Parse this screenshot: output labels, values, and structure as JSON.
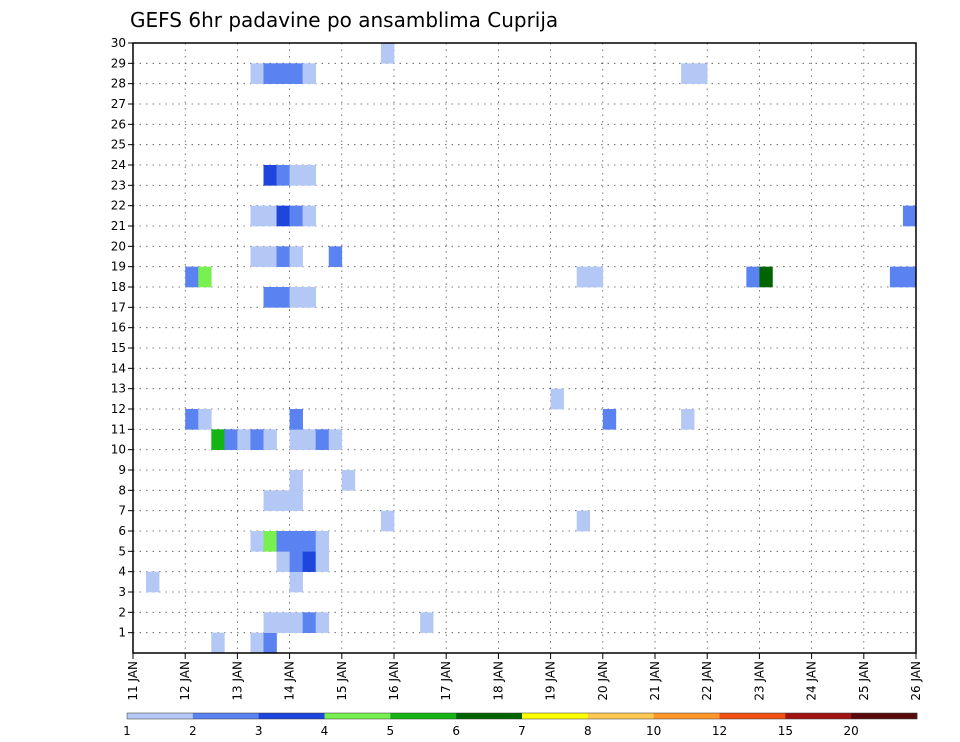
{
  "chart_data": {
    "type": "heatmap",
    "title": "GEFS 6hr padavine po ansamblima Cuprija",
    "xlabel": "",
    "ylabel": "",
    "x_axis": {
      "type": "date",
      "min": "2024-01-11T00:00",
      "max": "2024-01-26T00:00",
      "step_hours": 6,
      "tick_labels": [
        "11 JAN",
        "12 JAN",
        "13 JAN",
        "14 JAN",
        "15 JAN",
        "16 JAN",
        "17 JAN",
        "18 JAN",
        "19 JAN",
        "20 JAN",
        "21 JAN",
        "22 JAN",
        "23 JAN",
        "24 JAN",
        "25 JAN",
        "26 JAN"
      ]
    },
    "y_axis": {
      "min": 0,
      "max": 30,
      "tick_labels": [
        "1",
        "2",
        "3",
        "4",
        "5",
        "6",
        "7",
        "8",
        "9",
        "10",
        "11",
        "12",
        "13",
        "14",
        "15",
        "16",
        "17",
        "18",
        "19",
        "20",
        "21",
        "22",
        "23",
        "24",
        "25",
        "26",
        "27",
        "28",
        "29",
        "30"
      ]
    },
    "grid": true,
    "legend": {
      "placement": "bottom",
      "labels": [
        "1",
        "2",
        "3",
        "4",
        "5",
        "6",
        "7",
        "8",
        "10",
        "12",
        "15",
        "20"
      ],
      "colors": [
        "#b4c8f5",
        "#5a82f0",
        "#1e46dc",
        "#78f050",
        "#14b414",
        "#006400",
        "#ffff00",
        "#ffc850",
        "#ff9628",
        "#f05014",
        "#a01414",
        "#5a0a0a"
      ]
    },
    "colors": {
      "A": "#b4c8f5",
      "B": "#5a82f0",
      "C": "#1e46dc",
      "D": "#78f050",
      "E": "#14b414",
      "F": "#006400"
    },
    "cells": [
      {
        "x": "2024-01-11T06:00",
        "y": 3,
        "v": "A"
      },
      {
        "x": "2024-01-12T00:00",
        "y": 11,
        "v": "B"
      },
      {
        "x": "2024-01-12T06:00",
        "y": 11,
        "v": "A"
      },
      {
        "x": "2024-01-12T00:00",
        "y": 18,
        "v": "B"
      },
      {
        "x": "2024-01-12T06:00",
        "y": 18,
        "v": "D"
      },
      {
        "x": "2024-01-12T12:00",
        "y": 10,
        "v": "E"
      },
      {
        "x": "2024-01-12T18:00",
        "y": 10,
        "v": "B"
      },
      {
        "x": "2024-01-13T00:00",
        "y": 10,
        "v": "A"
      },
      {
        "x": "2024-01-13T06:00",
        "y": 10,
        "v": "B"
      },
      {
        "x": "2024-01-13T12:00",
        "y": 10,
        "v": "A"
      },
      {
        "x": "2024-01-14T00:00",
        "y": 10,
        "v": "A"
      },
      {
        "x": "2024-01-14T06:00",
        "y": 10,
        "v": "A"
      },
      {
        "x": "2024-01-14T12:00",
        "y": 10,
        "v": "B"
      },
      {
        "x": "2024-01-14T18:00",
        "y": 10,
        "v": "A"
      },
      {
        "x": "2024-01-14T00:00",
        "y": 11,
        "v": "B"
      },
      {
        "x": "2024-01-12T12:00",
        "y": 0,
        "v": "A"
      },
      {
        "x": "2024-01-13T06:00",
        "y": 0,
        "v": "A"
      },
      {
        "x": "2024-01-13T12:00",
        "y": 0,
        "v": "B"
      },
      {
        "x": "2024-01-13T12:00",
        "y": 1,
        "v": "A"
      },
      {
        "x": "2024-01-13T18:00",
        "y": 1,
        "v": "A"
      },
      {
        "x": "2024-01-14T00:00",
        "y": 1,
        "v": "A"
      },
      {
        "x": "2024-01-14T06:00",
        "y": 1,
        "v": "B"
      },
      {
        "x": "2024-01-14T12:00",
        "y": 1,
        "v": "A"
      },
      {
        "x": "2024-01-14T00:00",
        "y": 3,
        "v": "A"
      },
      {
        "x": "2024-01-13T18:00",
        "y": 4,
        "v": "A"
      },
      {
        "x": "2024-01-14T00:00",
        "y": 4,
        "v": "B"
      },
      {
        "x": "2024-01-14T06:00",
        "y": 4,
        "v": "C"
      },
      {
        "x": "2024-01-14T12:00",
        "y": 4,
        "v": "A"
      },
      {
        "x": "2024-01-13T06:00",
        "y": 5,
        "v": "A"
      },
      {
        "x": "2024-01-13T12:00",
        "y": 5,
        "v": "D"
      },
      {
        "x": "2024-01-13T18:00",
        "y": 5,
        "v": "B"
      },
      {
        "x": "2024-01-14T00:00",
        "y": 5,
        "v": "B"
      },
      {
        "x": "2024-01-14T06:00",
        "y": 5,
        "v": "B"
      },
      {
        "x": "2024-01-14T12:00",
        "y": 5,
        "v": "A"
      },
      {
        "x": "2024-01-13T12:00",
        "y": 7,
        "v": "A"
      },
      {
        "x": "2024-01-13T18:00",
        "y": 7,
        "v": "A"
      },
      {
        "x": "2024-01-14T00:00",
        "y": 7,
        "v": "A"
      },
      {
        "x": "2024-01-14T00:00",
        "y": 8,
        "v": "A"
      },
      {
        "x": "2024-01-15T00:00",
        "y": 8,
        "v": "A"
      },
      {
        "x": "2024-01-15T18:00",
        "y": 6,
        "v": "A"
      },
      {
        "x": "2024-01-16T12:00",
        "y": 1,
        "v": "A"
      },
      {
        "x": "2024-01-13T12:00",
        "y": 17,
        "v": "B"
      },
      {
        "x": "2024-01-13T18:00",
        "y": 17,
        "v": "B"
      },
      {
        "x": "2024-01-14T00:00",
        "y": 17,
        "v": "A"
      },
      {
        "x": "2024-01-14T06:00",
        "y": 17,
        "v": "A"
      },
      {
        "x": "2024-01-13T06:00",
        "y": 19,
        "v": "A"
      },
      {
        "x": "2024-01-13T12:00",
        "y": 19,
        "v": "A"
      },
      {
        "x": "2024-01-13T18:00",
        "y": 19,
        "v": "B"
      },
      {
        "x": "2024-01-14T00:00",
        "y": 19,
        "v": "A"
      },
      {
        "x": "2024-01-14T18:00",
        "y": 19,
        "v": "B"
      },
      {
        "x": "2024-01-13T06:00",
        "y": 21,
        "v": "A"
      },
      {
        "x": "2024-01-13T12:00",
        "y": 21,
        "v": "A"
      },
      {
        "x": "2024-01-13T18:00",
        "y": 21,
        "v": "C"
      },
      {
        "x": "2024-01-14T00:00",
        "y": 21,
        "v": "B"
      },
      {
        "x": "2024-01-14T06:00",
        "y": 21,
        "v": "A"
      },
      {
        "x": "2024-01-13T12:00",
        "y": 23,
        "v": "C"
      },
      {
        "x": "2024-01-13T18:00",
        "y": 23,
        "v": "B"
      },
      {
        "x": "2024-01-14T00:00",
        "y": 23,
        "v": "A"
      },
      {
        "x": "2024-01-14T06:00",
        "y": 23,
        "v": "A"
      },
      {
        "x": "2024-01-13T06:00",
        "y": 28,
        "v": "A"
      },
      {
        "x": "2024-01-13T12:00",
        "y": 28,
        "v": "B"
      },
      {
        "x": "2024-01-13T18:00",
        "y": 28,
        "v": "B"
      },
      {
        "x": "2024-01-14T00:00",
        "y": 28,
        "v": "B"
      },
      {
        "x": "2024-01-14T06:00",
        "y": 28,
        "v": "A"
      },
      {
        "x": "2024-01-15T18:00",
        "y": 29,
        "v": "A"
      },
      {
        "x": "2024-01-19T00:00",
        "y": 12,
        "v": "A"
      },
      {
        "x": "2024-01-19T12:00",
        "y": 6,
        "v": "A"
      },
      {
        "x": "2024-01-19T12:00",
        "y": 18,
        "v": "A"
      },
      {
        "x": "2024-01-19T18:00",
        "y": 18,
        "v": "A"
      },
      {
        "x": "2024-01-20T00:00",
        "y": 11,
        "v": "B"
      },
      {
        "x": "2024-01-21T12:00",
        "y": 11,
        "v": "A"
      },
      {
        "x": "2024-01-21T12:00",
        "y": 28,
        "v": "A"
      },
      {
        "x": "2024-01-21T18:00",
        "y": 28,
        "v": "A"
      },
      {
        "x": "2024-01-22T18:00",
        "y": 18,
        "v": "B"
      },
      {
        "x": "2024-01-23T00:00",
        "y": 18,
        "v": "F"
      },
      {
        "x": "2024-01-25T12:00",
        "y": 18,
        "v": "B"
      },
      {
        "x": "2024-01-25T18:00",
        "y": 18,
        "v": "B"
      },
      {
        "x": "2024-01-25T18:00",
        "y": 21,
        "v": "B"
      }
    ]
  }
}
